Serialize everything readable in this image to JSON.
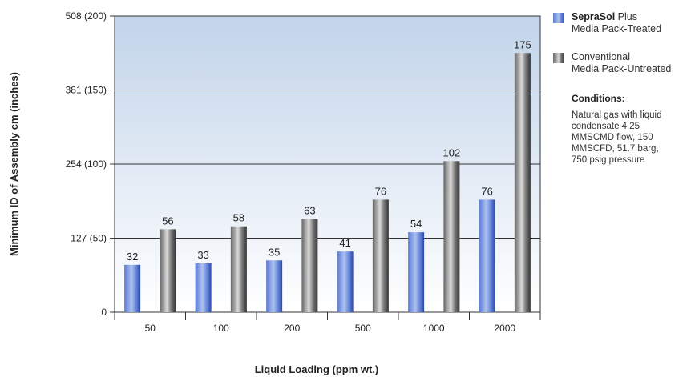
{
  "chart_data": {
    "type": "bar",
    "categories": [
      "50",
      "100",
      "200",
      "500",
      "1000",
      "2000"
    ],
    "series": [
      {
        "name": "SepraSol Plus Media Pack-Treated",
        "values": [
          32,
          33,
          35,
          41,
          54,
          76
        ],
        "color": "#6e8ee0"
      },
      {
        "name": "Conventional Media Pack-Untreated",
        "values": [
          56,
          58,
          63,
          76,
          102,
          175
        ],
        "color": "#8c8c8c"
      }
    ],
    "data_labels": {
      "treated": [
        "32",
        "33",
        "35",
        "41",
        "54",
        "76"
      ],
      "untreated": [
        "56",
        "58",
        "63",
        "76",
        "102",
        "175"
      ]
    },
    "yticks": [
      0,
      50,
      100,
      150,
      200
    ],
    "ytick_labels": [
      "0",
      "127 (50)",
      "254 (100)",
      "381 (150)",
      "508 (200)"
    ],
    "ylim": [
      0,
      200
    ],
    "xlabel": "Liquid Loading (ppm wt.)",
    "ylabel": "Minimum ID of Assembly cm (inches)",
    "grid": true,
    "legend_position": "right"
  },
  "legend": {
    "treated_brand": "SepraSol",
    "treated_line1_rest": " Plus",
    "treated_line2": "Media Pack-Treated",
    "untreated_line1": "Conventional",
    "untreated_line2": "Media Pack-Untreated"
  },
  "conditions": {
    "title": "Conditions:",
    "text": "Natural gas with liquid condensate 4.25 MMSCMD flow, 150 MMSCFD, 51.7 barg, 750 psig pressure"
  },
  "colors": {
    "plot_top": "#c2d4ea",
    "plot_bottom": "#ffffff"
  }
}
